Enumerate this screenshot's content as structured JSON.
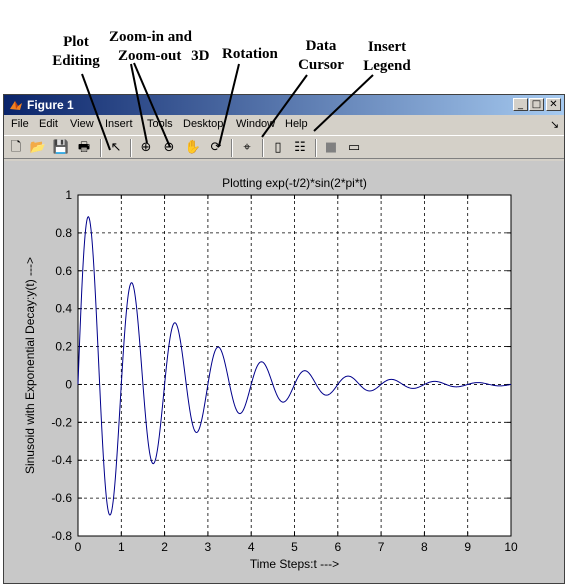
{
  "annotations": {
    "plot_editing": [
      "Plot",
      "Editing"
    ],
    "zoom": [
      "Zoom-in and",
      "Zoom-out",
      "3D"
    ],
    "rotation": "Rotation",
    "data_cursor": [
      "Data",
      "Cursor"
    ],
    "insert_legend": [
      "Insert",
      "Legend"
    ]
  },
  "window": {
    "title": "Figure 1",
    "buttons": [
      "_",
      "□",
      "✕"
    ]
  },
  "menu": [
    "File",
    "Edit",
    "View",
    "Insert",
    "Tools",
    "Desktop",
    "Window",
    "Help"
  ],
  "menu_dock": "↘",
  "toolbar": {
    "new": "🗋",
    "open": "📂",
    "save": "💾",
    "print": "🖶",
    "arrow": "↖",
    "zoom_in": "⊕",
    "zoom_out": "⊖",
    "pan": "✋",
    "rotate": "⟳",
    "data_cursor": "⌖",
    "colorbar": "▯",
    "legend": "☷",
    "hide": "■",
    "show": "▭"
  },
  "icons": [
    "matlab-logo-icon",
    "new-file-icon",
    "open-folder-icon",
    "save-icon",
    "print-icon",
    "edit-arrow-icon",
    "zoom-in-icon",
    "zoom-out-icon",
    "pan-hand-icon",
    "rotate-3d-icon",
    "data-cursor-icon",
    "colorbar-icon",
    "legend-icon",
    "hide-tools-icon",
    "show-tools-icon"
  ],
  "colors": {
    "title_gradient_start": "#0a246a",
    "title_gradient_end": "#a6caf0",
    "figure_bg": "#c8c8c8",
    "axes_bg": "#ffffff",
    "line": "#00008b"
  },
  "chart_data": {
    "type": "line",
    "title": "Plotting exp(-t/2)*sin(2*pi*t)",
    "xlabel": "Time Steps:t --->",
    "ylabel": "Sinusoid with Exponential Decay:y(t) --->",
    "xlim": [
      0,
      10
    ],
    "ylim": [
      -0.8,
      1
    ],
    "xticks": [
      0,
      1,
      2,
      3,
      4,
      5,
      6,
      7,
      8,
      9,
      10
    ],
    "yticks": [
      -0.8,
      -0.6,
      -0.4,
      -0.2,
      0,
      0.2,
      0.4,
      0.6,
      0.8,
      1
    ],
    "grid": true,
    "series": [
      {
        "function": "exp(-t/2)*sin(2*pi*t)",
        "x_range": [
          0,
          10
        ],
        "color": "#00008b",
        "x": [
          0,
          0.22,
          0.72,
          1.22,
          1.72,
          2.22,
          2.72,
          3.22,
          3.72,
          4.22,
          4.72,
          5.22,
          5.72,
          6.22,
          6.72,
          7.22,
          7.72,
          8.22,
          8.72,
          9.22,
          9.72,
          10
        ],
        "y": [
          0,
          0.88,
          -0.68,
          0.53,
          -0.41,
          0.32,
          -0.25,
          0.2,
          -0.15,
          0.12,
          -0.09,
          0.07,
          -0.06,
          0.04,
          -0.03,
          0.03,
          -0.02,
          0.02,
          -0.01,
          0.01,
          -0.01,
          0
        ]
      }
    ]
  }
}
